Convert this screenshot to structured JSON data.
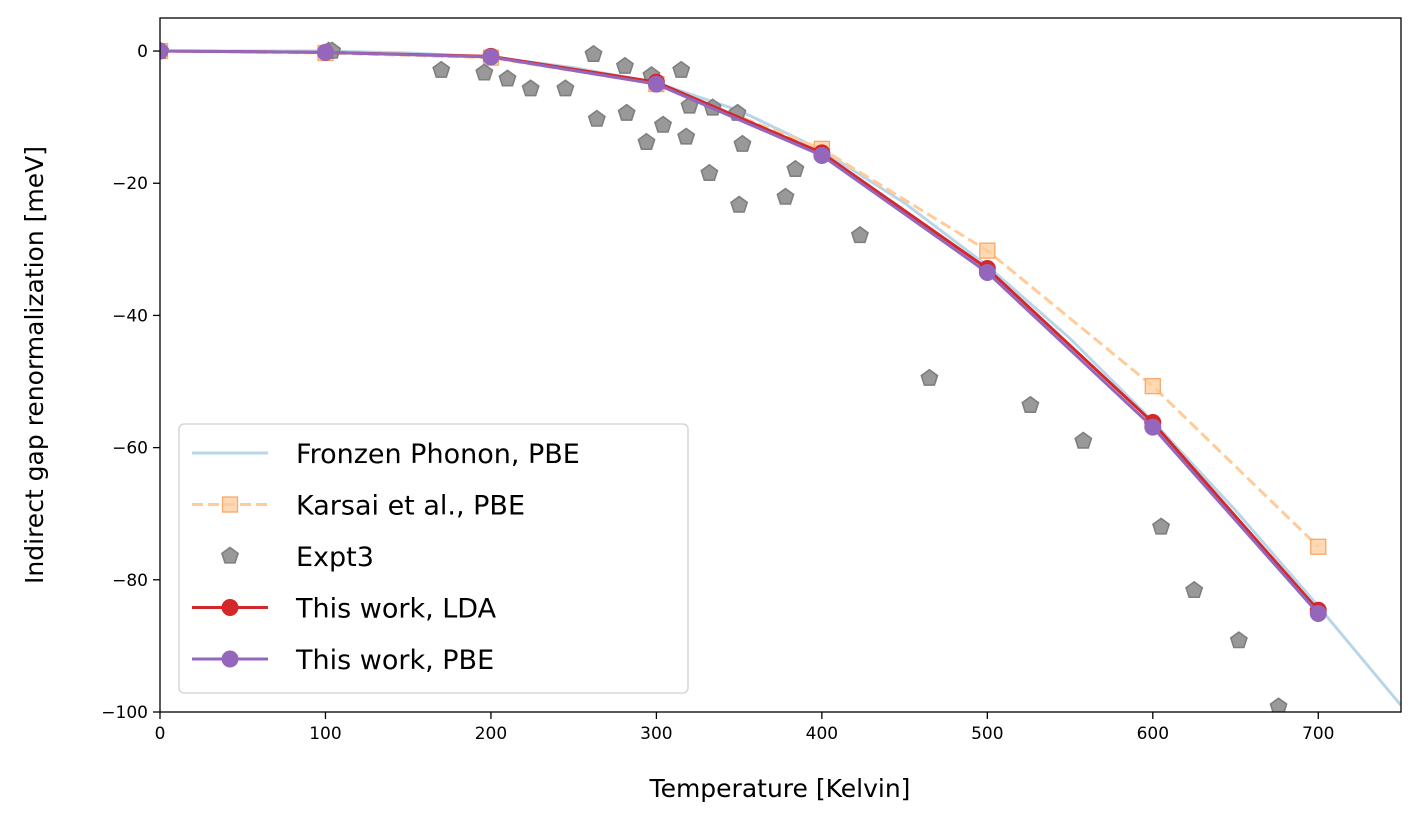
{
  "chart_data": {
    "type": "line",
    "xlabel": "Temperature [Kelvin]",
    "ylabel": "Indirect gap renormalization [meV]",
    "xlim": [
      0,
      750
    ],
    "ylim": [
      -100,
      5
    ],
    "xticks": [
      0,
      100,
      200,
      300,
      400,
      500,
      600,
      700
    ],
    "yticks": [
      -100,
      -80,
      -60,
      -40,
      -20,
      0
    ],
    "grid": false,
    "legend_position": "lower-left",
    "series": [
      {
        "name": "Fronzen Phonon, PBE",
        "style": "line",
        "color": "#b9d6e9",
        "x": [
          0,
          50,
          100,
          150,
          200,
          250,
          300,
          350,
          400,
          450,
          500,
          550,
          600,
          650,
          700,
          750
        ],
        "y": [
          0,
          0,
          0,
          -0.3,
          -0.9,
          -2.5,
          -4.8,
          -9.0,
          -15.0,
          -23.0,
          -32.5,
          -43.5,
          -56.0,
          -69.5,
          -84.0,
          -99.0
        ]
      },
      {
        "name": "Karsai et al., PBE",
        "style": "dashed-square",
        "color": "#ffcc99",
        "x": [
          0,
          100,
          200,
          300,
          400,
          500,
          600,
          700
        ],
        "y": [
          0,
          -0.3,
          -1.0,
          -5.0,
          -14.8,
          -30.2,
          -50.7,
          -75.0
        ]
      },
      {
        "name": "Expt3",
        "style": "scatter-pentagon",
        "color": "#999999",
        "x": [
          0,
          102,
          104,
          170,
          196,
          210,
          224,
          245,
          262,
          264,
          281,
          282,
          294,
          297,
          304,
          315,
          318,
          320,
          332,
          334,
          349,
          350,
          352,
          378,
          384,
          423,
          465,
          526,
          558,
          605,
          625,
          652,
          676
        ],
        "y": [
          0,
          0,
          0,
          -2.9,
          -3.3,
          -4.2,
          -5.7,
          -5.7,
          -0.5,
          -10.3,
          -2.3,
          -9.4,
          -13.8,
          -3.7,
          -11.2,
          -2.9,
          -13.0,
          -8.3,
          -18.5,
          -8.6,
          -9.4,
          -23.3,
          -14.1,
          -22.1,
          -17.9,
          -27.9,
          -49.5,
          -53.6,
          -59.0,
          -72.0,
          -81.6,
          -89.2,
          -99.2
        ]
      },
      {
        "name": "This work, LDA",
        "style": "line-circle",
        "color": "#d62728",
        "x": [
          0,
          100,
          200,
          300,
          400,
          500,
          600,
          700
        ],
        "y": [
          0,
          -0.2,
          -0.8,
          -4.7,
          -15.4,
          -32.9,
          -56.2,
          -84.6
        ]
      },
      {
        "name": "This work, PBE",
        "style": "line-circle",
        "color": "#9467bd",
        "x": [
          0,
          100,
          200,
          300,
          400,
          500,
          600,
          700
        ],
        "y": [
          0,
          -0.2,
          -0.9,
          -5.0,
          -15.8,
          -33.5,
          -56.9,
          -85.1
        ]
      }
    ]
  }
}
